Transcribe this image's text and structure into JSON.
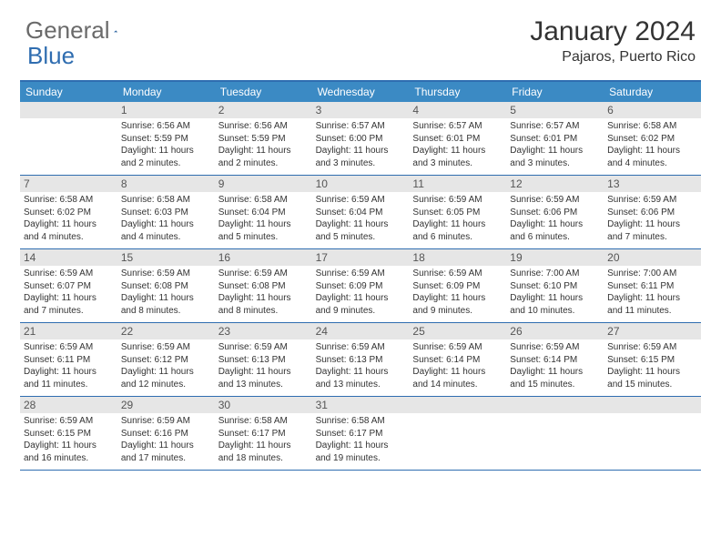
{
  "brand": {
    "word1": "General",
    "word2": "Blue"
  },
  "title": "January 2024",
  "location": "Pajaros, Puerto Rico",
  "colors": {
    "header_bg": "#3b8ac4",
    "border": "#2f6db0",
    "daynum_bg": "#e6e6e6",
    "text": "#333333",
    "header_text": "#ffffff",
    "logo_gray": "#6a6a6a",
    "logo_blue": "#2f6db0"
  },
  "day_headers": [
    "Sunday",
    "Monday",
    "Tuesday",
    "Wednesday",
    "Thursday",
    "Friday",
    "Saturday"
  ],
  "weeks": [
    [
      {
        "day": "",
        "sunrise": "",
        "sunset": "",
        "daylight1": "",
        "daylight2": ""
      },
      {
        "day": "1",
        "sunrise": "Sunrise: 6:56 AM",
        "sunset": "Sunset: 5:59 PM",
        "daylight1": "Daylight: 11 hours",
        "daylight2": "and 2 minutes."
      },
      {
        "day": "2",
        "sunrise": "Sunrise: 6:56 AM",
        "sunset": "Sunset: 5:59 PM",
        "daylight1": "Daylight: 11 hours",
        "daylight2": "and 2 minutes."
      },
      {
        "day": "3",
        "sunrise": "Sunrise: 6:57 AM",
        "sunset": "Sunset: 6:00 PM",
        "daylight1": "Daylight: 11 hours",
        "daylight2": "and 3 minutes."
      },
      {
        "day": "4",
        "sunrise": "Sunrise: 6:57 AM",
        "sunset": "Sunset: 6:01 PM",
        "daylight1": "Daylight: 11 hours",
        "daylight2": "and 3 minutes."
      },
      {
        "day": "5",
        "sunrise": "Sunrise: 6:57 AM",
        "sunset": "Sunset: 6:01 PM",
        "daylight1": "Daylight: 11 hours",
        "daylight2": "and 3 minutes."
      },
      {
        "day": "6",
        "sunrise": "Sunrise: 6:58 AM",
        "sunset": "Sunset: 6:02 PM",
        "daylight1": "Daylight: 11 hours",
        "daylight2": "and 4 minutes."
      }
    ],
    [
      {
        "day": "7",
        "sunrise": "Sunrise: 6:58 AM",
        "sunset": "Sunset: 6:02 PM",
        "daylight1": "Daylight: 11 hours",
        "daylight2": "and 4 minutes."
      },
      {
        "day": "8",
        "sunrise": "Sunrise: 6:58 AM",
        "sunset": "Sunset: 6:03 PM",
        "daylight1": "Daylight: 11 hours",
        "daylight2": "and 4 minutes."
      },
      {
        "day": "9",
        "sunrise": "Sunrise: 6:58 AM",
        "sunset": "Sunset: 6:04 PM",
        "daylight1": "Daylight: 11 hours",
        "daylight2": "and 5 minutes."
      },
      {
        "day": "10",
        "sunrise": "Sunrise: 6:59 AM",
        "sunset": "Sunset: 6:04 PM",
        "daylight1": "Daylight: 11 hours",
        "daylight2": "and 5 minutes."
      },
      {
        "day": "11",
        "sunrise": "Sunrise: 6:59 AM",
        "sunset": "Sunset: 6:05 PM",
        "daylight1": "Daylight: 11 hours",
        "daylight2": "and 6 minutes."
      },
      {
        "day": "12",
        "sunrise": "Sunrise: 6:59 AM",
        "sunset": "Sunset: 6:06 PM",
        "daylight1": "Daylight: 11 hours",
        "daylight2": "and 6 minutes."
      },
      {
        "day": "13",
        "sunrise": "Sunrise: 6:59 AM",
        "sunset": "Sunset: 6:06 PM",
        "daylight1": "Daylight: 11 hours",
        "daylight2": "and 7 minutes."
      }
    ],
    [
      {
        "day": "14",
        "sunrise": "Sunrise: 6:59 AM",
        "sunset": "Sunset: 6:07 PM",
        "daylight1": "Daylight: 11 hours",
        "daylight2": "and 7 minutes."
      },
      {
        "day": "15",
        "sunrise": "Sunrise: 6:59 AM",
        "sunset": "Sunset: 6:08 PM",
        "daylight1": "Daylight: 11 hours",
        "daylight2": "and 8 minutes."
      },
      {
        "day": "16",
        "sunrise": "Sunrise: 6:59 AM",
        "sunset": "Sunset: 6:08 PM",
        "daylight1": "Daylight: 11 hours",
        "daylight2": "and 8 minutes."
      },
      {
        "day": "17",
        "sunrise": "Sunrise: 6:59 AM",
        "sunset": "Sunset: 6:09 PM",
        "daylight1": "Daylight: 11 hours",
        "daylight2": "and 9 minutes."
      },
      {
        "day": "18",
        "sunrise": "Sunrise: 6:59 AM",
        "sunset": "Sunset: 6:09 PM",
        "daylight1": "Daylight: 11 hours",
        "daylight2": "and 9 minutes."
      },
      {
        "day": "19",
        "sunrise": "Sunrise: 7:00 AM",
        "sunset": "Sunset: 6:10 PM",
        "daylight1": "Daylight: 11 hours",
        "daylight2": "and 10 minutes."
      },
      {
        "day": "20",
        "sunrise": "Sunrise: 7:00 AM",
        "sunset": "Sunset: 6:11 PM",
        "daylight1": "Daylight: 11 hours",
        "daylight2": "and 11 minutes."
      }
    ],
    [
      {
        "day": "21",
        "sunrise": "Sunrise: 6:59 AM",
        "sunset": "Sunset: 6:11 PM",
        "daylight1": "Daylight: 11 hours",
        "daylight2": "and 11 minutes."
      },
      {
        "day": "22",
        "sunrise": "Sunrise: 6:59 AM",
        "sunset": "Sunset: 6:12 PM",
        "daylight1": "Daylight: 11 hours",
        "daylight2": "and 12 minutes."
      },
      {
        "day": "23",
        "sunrise": "Sunrise: 6:59 AM",
        "sunset": "Sunset: 6:13 PM",
        "daylight1": "Daylight: 11 hours",
        "daylight2": "and 13 minutes."
      },
      {
        "day": "24",
        "sunrise": "Sunrise: 6:59 AM",
        "sunset": "Sunset: 6:13 PM",
        "daylight1": "Daylight: 11 hours",
        "daylight2": "and 13 minutes."
      },
      {
        "day": "25",
        "sunrise": "Sunrise: 6:59 AM",
        "sunset": "Sunset: 6:14 PM",
        "daylight1": "Daylight: 11 hours",
        "daylight2": "and 14 minutes."
      },
      {
        "day": "26",
        "sunrise": "Sunrise: 6:59 AM",
        "sunset": "Sunset: 6:14 PM",
        "daylight1": "Daylight: 11 hours",
        "daylight2": "and 15 minutes."
      },
      {
        "day": "27",
        "sunrise": "Sunrise: 6:59 AM",
        "sunset": "Sunset: 6:15 PM",
        "daylight1": "Daylight: 11 hours",
        "daylight2": "and 15 minutes."
      }
    ],
    [
      {
        "day": "28",
        "sunrise": "Sunrise: 6:59 AM",
        "sunset": "Sunset: 6:15 PM",
        "daylight1": "Daylight: 11 hours",
        "daylight2": "and 16 minutes."
      },
      {
        "day": "29",
        "sunrise": "Sunrise: 6:59 AM",
        "sunset": "Sunset: 6:16 PM",
        "daylight1": "Daylight: 11 hours",
        "daylight2": "and 17 minutes."
      },
      {
        "day": "30",
        "sunrise": "Sunrise: 6:58 AM",
        "sunset": "Sunset: 6:17 PM",
        "daylight1": "Daylight: 11 hours",
        "daylight2": "and 18 minutes."
      },
      {
        "day": "31",
        "sunrise": "Sunrise: 6:58 AM",
        "sunset": "Sunset: 6:17 PM",
        "daylight1": "Daylight: 11 hours",
        "daylight2": "and 19 minutes."
      },
      {
        "day": "",
        "sunrise": "",
        "sunset": "",
        "daylight1": "",
        "daylight2": ""
      },
      {
        "day": "",
        "sunrise": "",
        "sunset": "",
        "daylight1": "",
        "daylight2": ""
      },
      {
        "day": "",
        "sunrise": "",
        "sunset": "",
        "daylight1": "",
        "daylight2": ""
      }
    ]
  ]
}
